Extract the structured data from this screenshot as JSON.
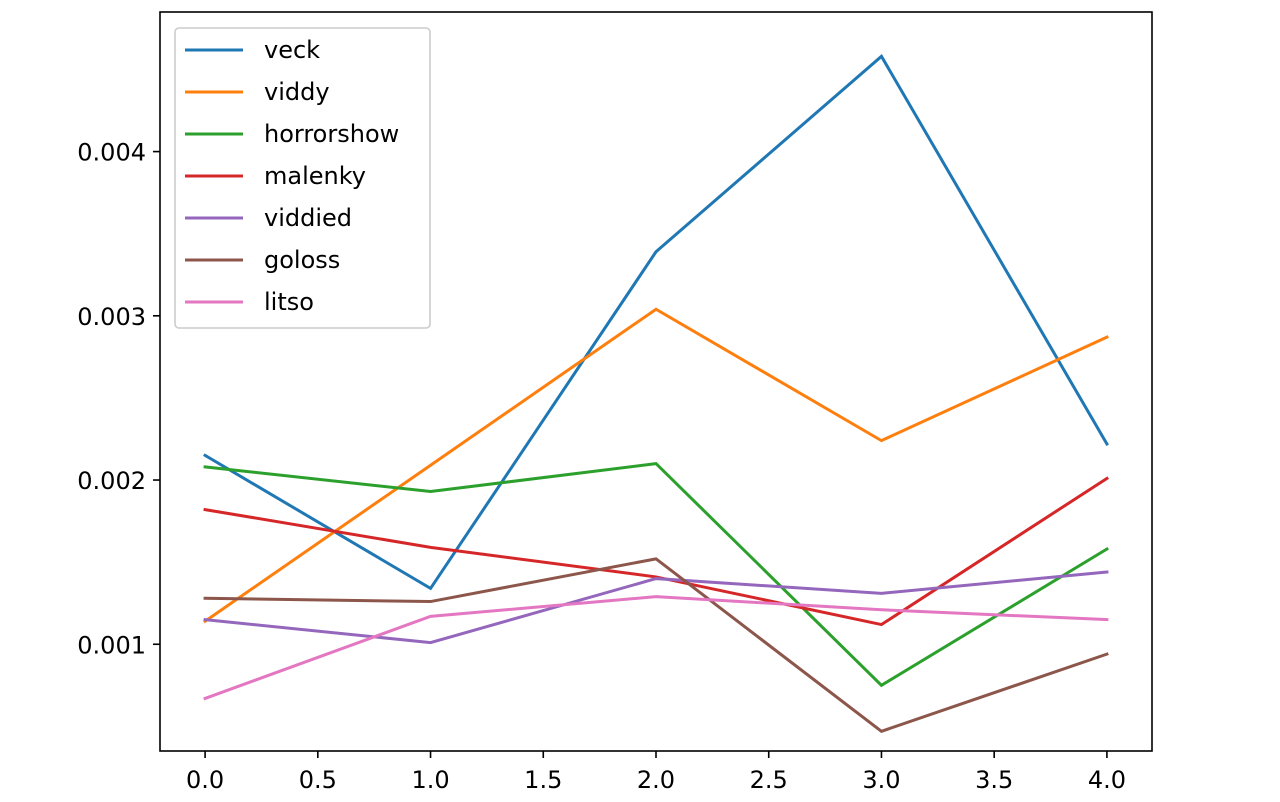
{
  "chart_data": {
    "type": "line",
    "title": "",
    "xlabel": "",
    "ylabel": "",
    "x": [
      0,
      1,
      2,
      3,
      4
    ],
    "xlim": [
      -0.2,
      4.2
    ],
    "ylim": [
      0.00035,
      0.00485
    ],
    "xticks": [
      0.0,
      0.5,
      1.0,
      1.5,
      2.0,
      2.5,
      3.0,
      3.5,
      4.0
    ],
    "xtick_labels": [
      "0.0",
      "0.5",
      "1.0",
      "1.5",
      "2.0",
      "2.5",
      "3.0",
      "3.5",
      "4.0"
    ],
    "yticks": [
      0.001,
      0.002,
      0.003,
      0.004
    ],
    "ytick_labels": [
      "0.001",
      "0.002",
      "0.003",
      "0.004"
    ],
    "grid": false,
    "legend_position": "top-left",
    "series": [
      {
        "name": "veck",
        "color": "#1f77b4",
        "values": [
          0.00215,
          0.00134,
          0.00339,
          0.00458,
          0.00222
        ]
      },
      {
        "name": "viddy",
        "color": "#ff7f0e",
        "values": [
          0.00114,
          0.00209,
          0.00304,
          0.00224,
          0.00287
        ]
      },
      {
        "name": "horrorshow",
        "color": "#2ca02c",
        "values": [
          0.00208,
          0.00193,
          0.0021,
          0.00075,
          0.00158
        ]
      },
      {
        "name": "malenky",
        "color": "#d62728",
        "values": [
          0.00182,
          0.00159,
          0.00141,
          0.00112,
          0.00201
        ]
      },
      {
        "name": "viddied",
        "color": "#9467bd",
        "values": [
          0.00115,
          0.00101,
          0.0014,
          0.00131,
          0.00144
        ]
      },
      {
        "name": "goloss",
        "color": "#8c564b",
        "values": [
          0.00128,
          0.00126,
          0.00152,
          0.00047,
          0.00094
        ]
      },
      {
        "name": "litso",
        "color": "#e377c2",
        "values": [
          0.00067,
          0.00117,
          0.00129,
          0.00121,
          0.00115
        ]
      }
    ]
  }
}
